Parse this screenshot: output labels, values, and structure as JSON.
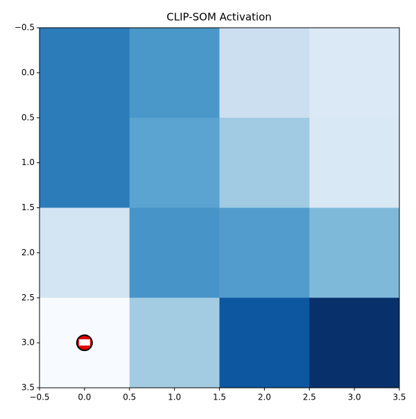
{
  "chart_data": {
    "type": "heatmap",
    "title": "CLIP-SOM Activation",
    "colormap": "Blues",
    "values": [
      [
        0.71,
        0.6,
        0.22,
        0.14
      ],
      [
        0.71,
        0.55,
        0.37,
        0.15
      ],
      [
        0.18,
        0.61,
        0.58,
        0.45
      ],
      [
        0,
        0.36,
        0.85,
        1
      ]
    ],
    "xlim": [
      -0.5,
      3.5
    ],
    "ylim": [
      3.5,
      -0.5
    ],
    "xticks": [
      {
        "value": -0.5,
        "label": "−0.5"
      },
      0.0,
      0.5,
      1.0,
      1.5,
      2.0,
      2.5,
      3.0,
      3.5
    ],
    "yticks": [
      {
        "value": -0.5,
        "label": "−0.5"
      },
      0.0,
      0.5,
      1.0,
      1.5,
      2.0,
      2.5,
      3.0,
      3.5
    ],
    "marker": {
      "x": 0,
      "y": 3
    }
  }
}
